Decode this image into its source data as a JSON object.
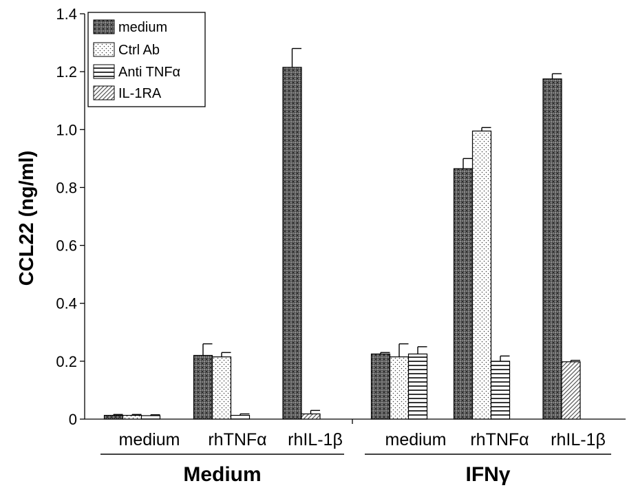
{
  "chart_data": {
    "type": "bar",
    "ylabel": "CCL22 (ng/ml)",
    "ylim": [
      0,
      1.4
    ],
    "yticks": [
      "0",
      "0.2",
      "0.4",
      "0.6",
      "0.8",
      "1.0",
      "1.2",
      "1.4"
    ],
    "grid": false,
    "legend_position": "top-left",
    "groups": [
      {
        "name": "Medium",
        "categories": [
          "medium",
          "rhTNFα",
          "rhIL-1β"
        ]
      },
      {
        "name": "IFNγ",
        "categories": [
          "medium",
          "rhTNFα",
          "rhIL-1β"
        ]
      }
    ],
    "series": [
      {
        "name": "medium",
        "pattern": "crosshatch",
        "color": "#8a8a8a",
        "values": [
          0.013,
          0.22,
          1.215,
          0.225,
          0.865,
          1.175
        ],
        "errors": [
          0.003,
          0.04,
          0.065,
          0.005,
          0.035,
          0.018
        ]
      },
      {
        "name": "Ctrl Ab",
        "pattern": "dots",
        "color": "#ffffff",
        "values": [
          0.013,
          0.215,
          null,
          0.215,
          0.995,
          null
        ],
        "errors": [
          0.003,
          0.015,
          null,
          0.045,
          0.012,
          null
        ]
      },
      {
        "name": "Anti TNFα",
        "pattern": "horizontal-lines",
        "color": "#ffffff",
        "values": [
          0.012,
          0.013,
          null,
          0.225,
          0.2,
          null
        ],
        "errors": [
          0.003,
          0.005,
          null,
          0.025,
          0.018,
          null
        ]
      },
      {
        "name": "IL-1RA",
        "pattern": "diagonal-lines",
        "color": "#ffffff",
        "values": [
          null,
          null,
          0.018,
          null,
          null,
          0.198
        ],
        "errors": [
          null,
          null,
          0.012,
          null,
          null,
          0.005
        ]
      }
    ]
  }
}
